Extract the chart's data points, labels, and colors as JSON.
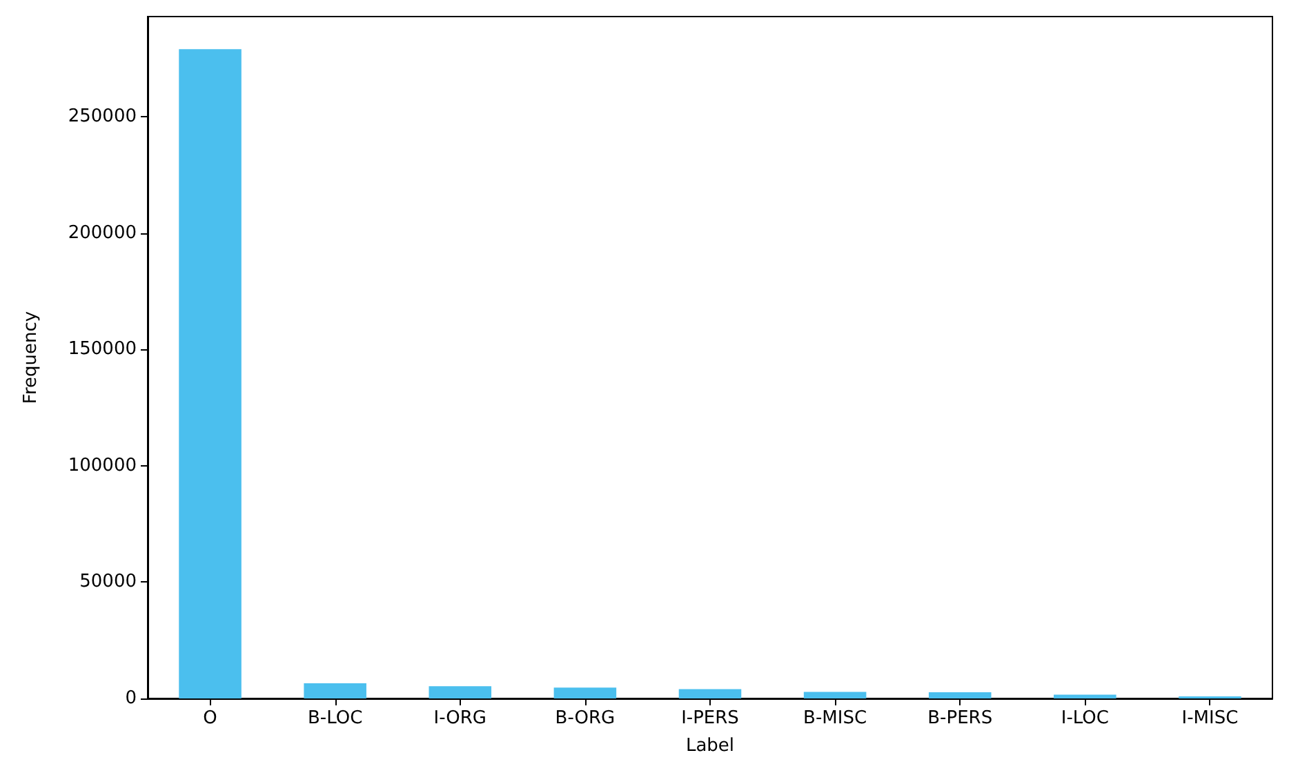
{
  "chart_data": {
    "type": "bar",
    "xlabel": "Label",
    "ylabel": "Frequency",
    "categories": [
      "O",
      "B-LOC",
      "I-ORG",
      "B-ORG",
      "I-PERS",
      "B-MISC",
      "B-PERS",
      "I-LOC",
      "I-MISC"
    ],
    "values": [
      279000,
      6500,
      5300,
      4700,
      4000,
      2800,
      2700,
      1600,
      900
    ],
    "color": "#4bbfee",
    "ylim": [
      0,
      293000
    ],
    "yticks": [
      0,
      50000,
      100000,
      150000,
      200000,
      250000
    ],
    "grid": false
  }
}
